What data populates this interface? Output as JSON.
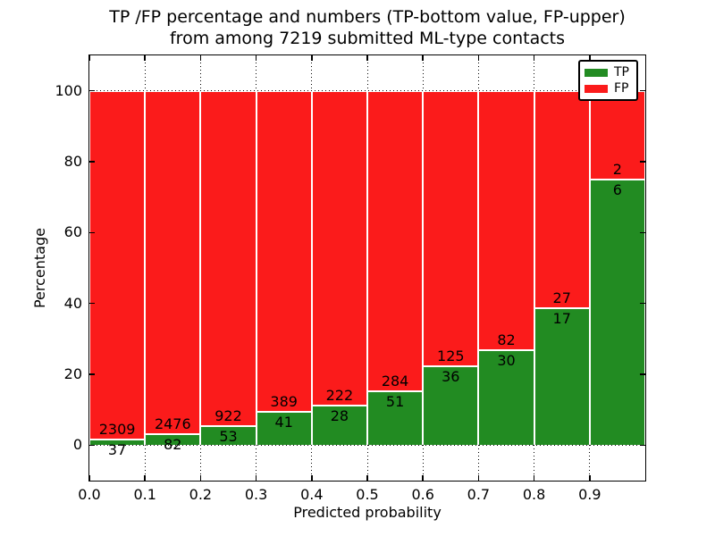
{
  "chart_data": {
    "type": "bar",
    "stacked": true,
    "title": "TP /FP percentage and numbers (TP-bottom value, FP-upper)\nfrom among 7219 submitted ML-type contacts",
    "title_lines": [
      "TP /FP percentage and numbers (TP-bottom value, FP-upper)",
      "from among 7219 submitted ML-type contacts"
    ],
    "xlabel": "Predicted probability",
    "ylabel": "Percentage",
    "xlim": [
      0.0,
      1.0
    ],
    "ylim": [
      -10,
      110
    ],
    "x_tick_values": [
      0.0,
      0.1,
      0.2,
      0.3,
      0.4,
      0.5,
      0.6,
      0.7,
      0.8,
      0.9
    ],
    "x_tick_labels": [
      "0.0",
      "0.1",
      "0.2",
      "0.3",
      "0.4",
      "0.5",
      "0.6",
      "0.7",
      "0.8",
      "0.9"
    ],
    "y_tick_values": [
      0,
      20,
      40,
      60,
      80,
      100
    ],
    "y_tick_labels": [
      "0",
      "20",
      "40",
      "60",
      "80",
      "100"
    ],
    "grid": "dotted",
    "total_contacts": 7219,
    "colors": {
      "tp": "#228b22",
      "fp": "#fb1b1b"
    },
    "legend": {
      "position": "upper right",
      "entries": [
        {
          "label": "TP",
          "color": "#228b22"
        },
        {
          "label": "FP",
          "color": "#fb1b1b"
        }
      ]
    },
    "bins": [
      {
        "range": [
          0.0,
          0.1
        ],
        "tp_count": 37,
        "fp_count": 2309,
        "tp_pct": 1.58,
        "fp_pct": 98.42
      },
      {
        "range": [
          0.1,
          0.2
        ],
        "tp_count": 82,
        "fp_count": 2476,
        "tp_pct": 3.21,
        "fp_pct": 96.79
      },
      {
        "range": [
          0.2,
          0.3
        ],
        "tp_count": 53,
        "fp_count": 922,
        "tp_pct": 5.44,
        "fp_pct": 94.56
      },
      {
        "range": [
          0.3,
          0.4
        ],
        "tp_count": 41,
        "fp_count": 389,
        "tp_pct": 9.53,
        "fp_pct": 90.47
      },
      {
        "range": [
          0.4,
          0.5
        ],
        "tp_count": 28,
        "fp_count": 222,
        "tp_pct": 11.2,
        "fp_pct": 88.8
      },
      {
        "range": [
          0.5,
          0.6
        ],
        "tp_count": 51,
        "fp_count": 284,
        "tp_pct": 15.22,
        "fp_pct": 84.78
      },
      {
        "range": [
          0.6,
          0.7
        ],
        "tp_count": 36,
        "fp_count": 125,
        "tp_pct": 22.36,
        "fp_pct": 77.64
      },
      {
        "range": [
          0.7,
          0.8
        ],
        "tp_count": 30,
        "fp_count": 82,
        "tp_pct": 26.79,
        "fp_pct": 73.21
      },
      {
        "range": [
          0.8,
          0.9
        ],
        "tp_count": 17,
        "fp_count": 27,
        "tp_pct": 38.64,
        "fp_pct": 61.36
      },
      {
        "range": [
          0.9,
          1.0
        ],
        "tp_count": 6,
        "fp_count": 2,
        "tp_pct": 75.0,
        "fp_pct": 25.0
      }
    ]
  }
}
